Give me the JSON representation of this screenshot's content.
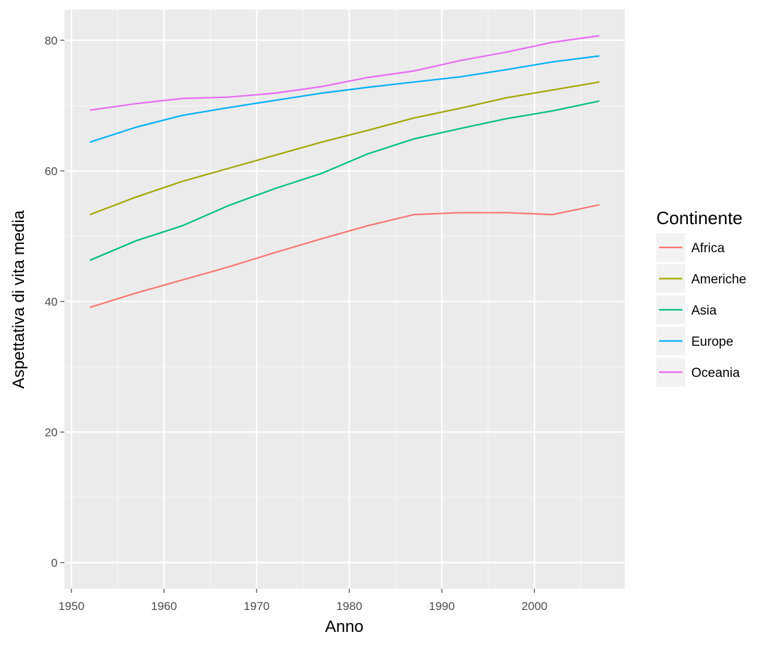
{
  "chart_data": {
    "type": "line",
    "xlabel": "Anno",
    "ylabel": "Aspettativa di vita media",
    "xlim": [
      1949.25,
      2009.75
    ],
    "ylim": [
      -4,
      84.7
    ],
    "x_ticks": [
      1950,
      1960,
      1970,
      1980,
      1990,
      2000
    ],
    "y_ticks": [
      0,
      20,
      40,
      60,
      80
    ],
    "grid": true,
    "legend": {
      "title": "Continente",
      "position": "right"
    },
    "x": [
      1952,
      1957,
      1962,
      1967,
      1972,
      1977,
      1982,
      1987,
      1992,
      1997,
      2002,
      2007
    ],
    "series": [
      {
        "name": "Africa",
        "color": "#F8766D",
        "values": [
          39.1,
          41.3,
          43.3,
          45.3,
          47.5,
          49.6,
          51.6,
          53.3,
          53.6,
          53.6,
          53.3,
          54.8
        ]
      },
      {
        "name": "Americhe",
        "color": "#A3A500",
        "values": [
          53.3,
          56.0,
          58.4,
          60.4,
          62.4,
          64.4,
          66.2,
          68.1,
          69.6,
          71.2,
          72.4,
          73.6
        ]
      },
      {
        "name": "Asia",
        "color": "#00BF7D",
        "values": [
          46.3,
          49.3,
          51.6,
          54.7,
          57.3,
          59.6,
          62.6,
          64.9,
          66.5,
          68.0,
          69.2,
          70.7
        ]
      },
      {
        "name": "Europe",
        "color": "#00B0F6",
        "values": [
          64.4,
          66.7,
          68.5,
          69.7,
          70.8,
          71.9,
          72.8,
          73.6,
          74.4,
          75.5,
          76.7,
          77.6
        ]
      },
      {
        "name": "Oceania",
        "color": "#E76BF3",
        "values": [
          69.3,
          70.3,
          71.1,
          71.3,
          71.9,
          72.9,
          74.3,
          75.3,
          76.9,
          78.2,
          79.7,
          80.7
        ]
      }
    ]
  }
}
